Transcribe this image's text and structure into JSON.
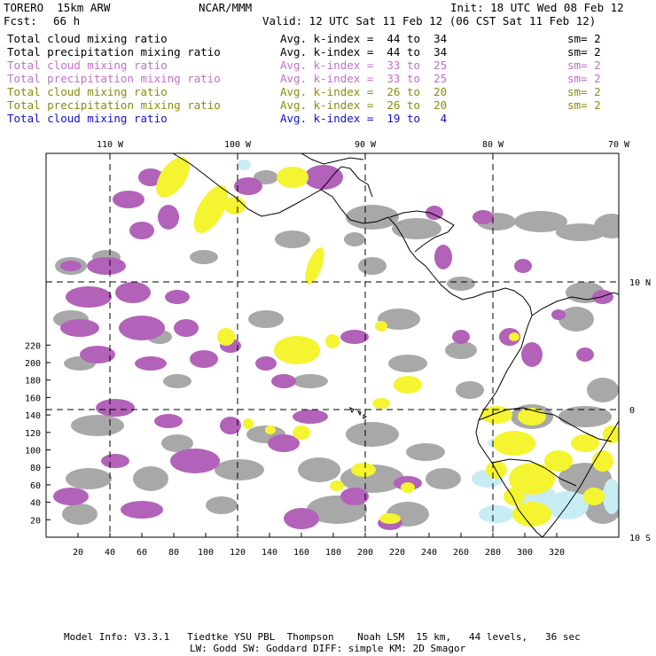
{
  "header": {
    "model": "TORERO  15km ARW",
    "org": "NCAR/MMM",
    "init": "Init: 18 UTC Wed 08 Feb 12",
    "fcst_label": "Fcst:",
    "fcst_value": "66 h",
    "valid": "Valid: 12 UTC Sat 11 Feb 12 (06 CST Sat 11 Feb 12)"
  },
  "legend": [
    {
      "field": "Total cloud mixing ratio",
      "kindex": "Avg. k-index =  44 to  34",
      "sm": "sm= 2",
      "color": "#000000"
    },
    {
      "field": "Total precipitation mixing ratio",
      "kindex": "Avg. k-index =  44 to  34",
      "sm": "sm= 2",
      "color": "#000000"
    },
    {
      "field": "Total cloud mixing ratio",
      "kindex": "Avg. k-index =  33 to  25",
      "sm": "sm= 2",
      "color": "#c070c8"
    },
    {
      "field": "Total precipitation mixing ratio",
      "kindex": "Avg. k-index =  33 to  25",
      "sm": "sm= 2",
      "color": "#c070c8"
    },
    {
      "field": "Total cloud mixing ratio",
      "kindex": "Avg. k-index =  26 to  20",
      "sm": "sm= 2",
      "color": "#8a8a10"
    },
    {
      "field": "Total precipitation mixing ratio",
      "kindex": "Avg. k-index =  26 to  20",
      "sm": "sm= 2",
      "color": "#8a8a10"
    },
    {
      "field": "Total cloud mixing ratio",
      "kindex": "Avg. k-index =  19 to   4",
      "sm": "",
      "color": "#1010d0"
    }
  ],
  "map": {
    "lon_labels": [
      "110 W",
      "100 W",
      "90 W",
      "80 W",
      "70 W"
    ],
    "lat_labels": [
      "10 N",
      "0",
      "10 S"
    ],
    "x_ticks": [
      "20",
      "40",
      "60",
      "80",
      "100",
      "120",
      "140",
      "160",
      "180",
      "200",
      "220",
      "240",
      "260",
      "280",
      "300",
      "320"
    ],
    "y_ticks": [
      "20",
      "40",
      "60",
      "80",
      "100",
      "120",
      "140",
      "160",
      "180",
      "200",
      "220"
    ],
    "colors": {
      "gray": "#a8a8a8",
      "purple": "#b262b8",
      "yellow": "#f4f430",
      "cyan": "#c8ecf4"
    }
  },
  "footer": {
    "line1": "Model Info: V3.3.1   Tiedtke YSU PBL  Thompson    Noah LSM  15 km,   44 levels,   36 sec",
    "line2": "LW: Godd SW: Goddard DIFF: simple KM: 2D Smagor"
  }
}
